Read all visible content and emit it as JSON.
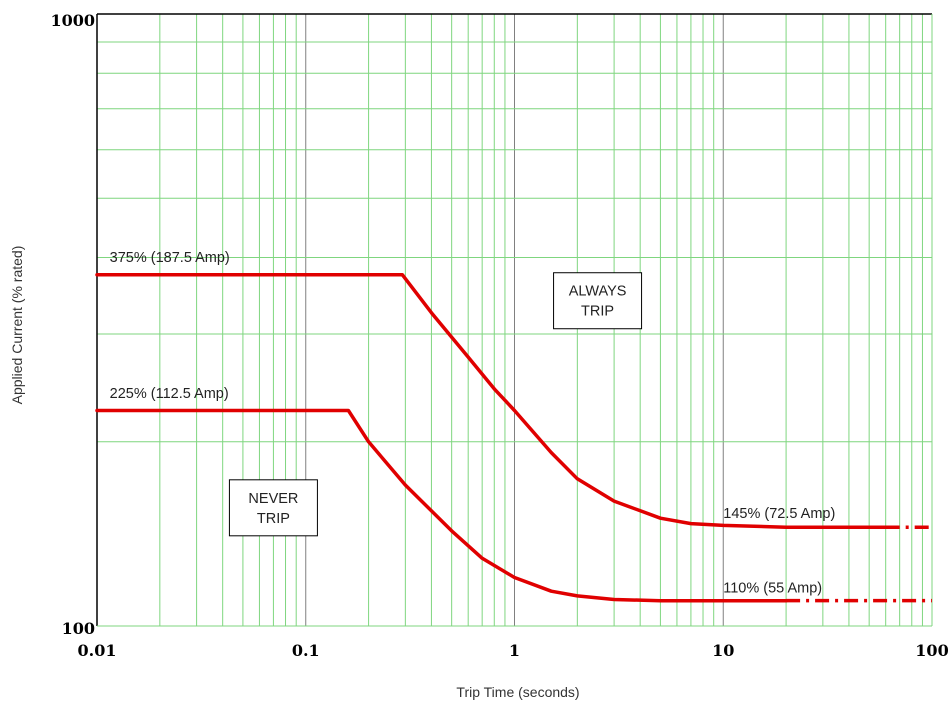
{
  "chart_data": {
    "type": "line",
    "title": "",
    "xlabel": "Trip Time (seconds)",
    "ylabel": "Applied Current (% rated)",
    "x_scale": "log",
    "y_scale": "log",
    "xlim": [
      0.01,
      100
    ],
    "ylim": [
      100,
      1000
    ],
    "grid": true,
    "grid_color": "#7fd67f",
    "decade_grid_color": "#808080",
    "line_color": "#e00000",
    "x_ticks": [
      "0.01",
      "0.1",
      "1",
      "10",
      "100"
    ],
    "y_ticks": [
      "100",
      "1000"
    ],
    "series": [
      {
        "x": [
          0.01,
          0.29,
          0.4,
          0.6,
          0.8,
          1,
          1.5,
          2,
          3,
          5,
          7,
          10,
          20,
          40,
          60
        ],
        "y": [
          375,
          375,
          325,
          275,
          244,
          225,
          192,
          174,
          160,
          150,
          147,
          146,
          145,
          145,
          145
        ],
        "dashed_extension": {
          "x": [
            60,
            100
          ],
          "y": [
            145,
            145
          ]
        }
      },
      {
        "x": [
          0.01,
          0.16,
          0.2,
          0.3,
          0.5,
          0.7,
          1,
          1.5,
          2,
          3,
          5,
          10,
          20
        ],
        "y": [
          225,
          225,
          200,
          170,
          143,
          129,
          120,
          114,
          112,
          110.5,
          110,
          110,
          110
        ],
        "dashed_extension": {
          "x": [
            20,
            100
          ],
          "y": [
            110,
            110
          ]
        }
      }
    ],
    "annotations": [
      {
        "text": "375%  (187.5 Amp)",
        "x": 0.0115,
        "y": 393
      },
      {
        "text": "225%  (112.5 Amp)",
        "x": 0.0115,
        "y": 236
      },
      {
        "text": "145% (72.5 Amp)",
        "x": 10,
        "y": 150
      },
      {
        "text": "110% (55 Amp)",
        "x": 10,
        "y": 113.5
      }
    ],
    "regions": [
      {
        "lines": [
          "ALWAYS",
          "TRIP"
        ],
        "x": 2.5,
        "y": 340
      },
      {
        "lines": [
          "NEVER",
          "TRIP"
        ],
        "x": 0.07,
        "y": 156
      }
    ]
  }
}
